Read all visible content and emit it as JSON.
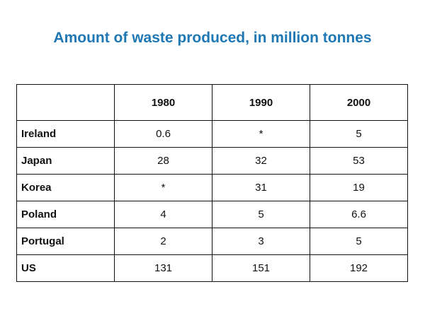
{
  "title": "Amount of waste produced, in million tonnes",
  "table": {
    "columns": [
      "1980",
      "1990",
      "2000"
    ],
    "rows": [
      {
        "label": "Ireland",
        "values": [
          0.6,
          "*",
          5
        ]
      },
      {
        "label": "Japan",
        "values": [
          28,
          32,
          53
        ]
      },
      {
        "label": "Korea",
        "values": [
          "*",
          31,
          19
        ]
      },
      {
        "label": "Poland",
        "values": [
          4,
          5,
          6.6
        ]
      },
      {
        "label": "Portugal",
        "values": [
          2,
          3,
          5
        ]
      },
      {
        "label": "US",
        "values": [
          131,
          151,
          192
        ]
      }
    ]
  }
}
